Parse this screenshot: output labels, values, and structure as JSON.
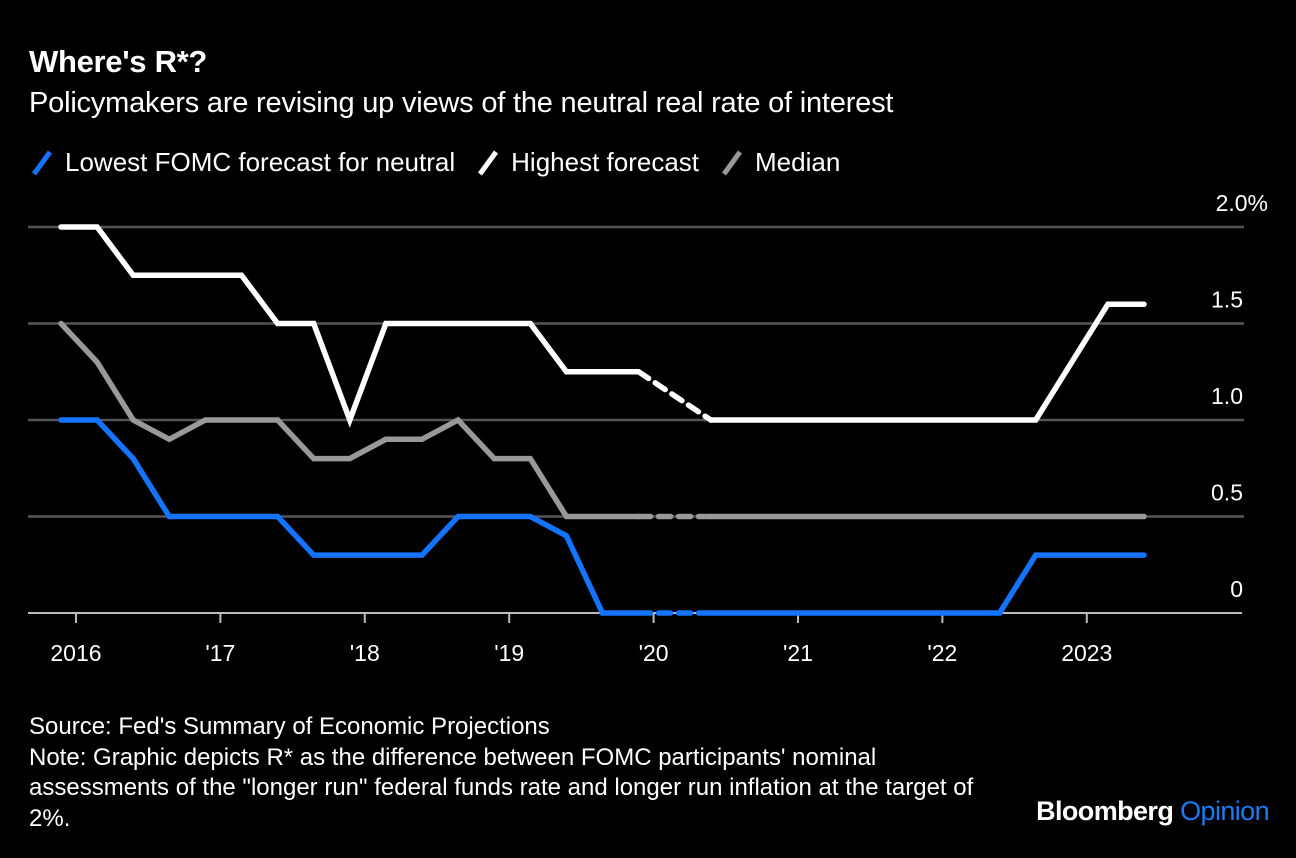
{
  "title": "Where's R*?",
  "subtitle": "Policymakers are revising up views of the neutral real rate of interest",
  "legend": [
    {
      "label": "Lowest FOMC forecast for neutral",
      "color": "#1473ff",
      "icon": "slash-line-icon"
    },
    {
      "label": "Highest forecast",
      "color": "#ffffff",
      "icon": "slash-line-icon"
    },
    {
      "label": "Median",
      "color": "#999999",
      "icon": "slash-line-icon"
    }
  ],
  "footer": {
    "source": "Source: Fed's Summary of Economic Projections",
    "note": "Note: Graphic depicts R* as the difference between FOMC participants' nominal assessments of the \"longer run\" federal funds rate and longer run inflation at the target of 2%."
  },
  "brand": {
    "name": "Bloomberg",
    "section": "Opinion",
    "section_color": "#1a7cf5"
  },
  "colors": {
    "background": "#000000",
    "gridline": "#555555",
    "axis": "#bbbbbb"
  },
  "chart_data": {
    "type": "line",
    "title": "Where's R*?",
    "subtitle": "Policymakers are revising up views of the neutral real rate of interest",
    "xlabel": "",
    "ylabel": "",
    "y_unit": "%",
    "ylim": [
      0,
      2.0
    ],
    "yticks": [
      0,
      0.5,
      1.0,
      1.5,
      2.0
    ],
    "ytick_labels": [
      "0",
      "0.5",
      "1.0",
      "1.5",
      "2.0%"
    ],
    "xticks": [
      "2016",
      "2017",
      "2018",
      "2019",
      "2020",
      "2021",
      "2022",
      "2023"
    ],
    "xtick_labels": [
      "2016",
      "'17",
      "'18",
      "'19",
      "'20",
      "'21",
      "'22",
      "2023"
    ],
    "grid": true,
    "legend_position": "top-left",
    "gap_note": "dashed segment from 2019-12 to 2020-06 (no March 2020 projections)",
    "x": [
      "2015-12",
      "2016-03",
      "2016-06",
      "2016-09",
      "2016-12",
      "2017-03",
      "2017-06",
      "2017-09",
      "2017-12",
      "2018-03",
      "2018-06",
      "2018-09",
      "2018-12",
      "2019-03",
      "2019-06",
      "2019-09",
      "2019-12",
      "2020-06",
      "2020-09",
      "2020-12",
      "2021-03",
      "2021-06",
      "2021-09",
      "2021-12",
      "2022-03",
      "2022-06",
      "2022-09",
      "2022-12",
      "2023-03",
      "2023-06"
    ],
    "series": [
      {
        "name": "Lowest FOMC forecast for neutral",
        "color": "#1473ff",
        "values": [
          1.0,
          1.0,
          0.8,
          0.5,
          0.5,
          0.5,
          0.5,
          0.3,
          0.3,
          0.3,
          0.3,
          0.5,
          0.5,
          0.5,
          0.4,
          0.0,
          0.0,
          0.0,
          0.0,
          0.0,
          0.0,
          0.0,
          0.0,
          0.0,
          0.0,
          0.0,
          0.3,
          0.3,
          0.3,
          0.3
        ]
      },
      {
        "name": "Highest forecast",
        "color": "#ffffff",
        "values": [
          2.0,
          2.0,
          1.75,
          1.75,
          1.75,
          1.75,
          1.5,
          1.5,
          1.0,
          1.5,
          1.5,
          1.5,
          1.5,
          1.5,
          1.25,
          1.25,
          1.25,
          1.0,
          1.0,
          1.0,
          1.0,
          1.0,
          1.0,
          1.0,
          1.0,
          1.0,
          1.0,
          1.3,
          1.6,
          1.6
        ]
      },
      {
        "name": "Median",
        "color": "#999999",
        "values": [
          1.5,
          1.3,
          1.0,
          0.9,
          1.0,
          1.0,
          1.0,
          0.8,
          0.8,
          0.9,
          0.9,
          1.0,
          0.8,
          0.8,
          0.5,
          0.5,
          0.5,
          0.5,
          0.5,
          0.5,
          0.5,
          0.5,
          0.5,
          0.5,
          0.5,
          0.5,
          0.5,
          0.5,
          0.5,
          0.5
        ]
      }
    ]
  }
}
